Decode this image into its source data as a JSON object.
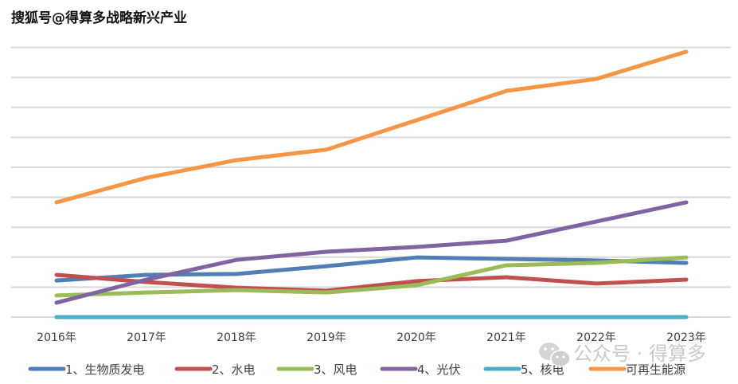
{
  "watermark_top": "搜狐号@得算多战略新兴产业",
  "watermark_bottom": {
    "icon": "wechat-icon",
    "text": "公众号 · 得算多"
  },
  "chart_data": {
    "type": "line",
    "title": "",
    "xlabel": "",
    "ylabel": "",
    "y_axis_labels_visible": false,
    "y_units": "gridline units (no axis labels shown)",
    "ylim": [
      0,
      9
    ],
    "grid": true,
    "legend_position": "bottom",
    "categories": [
      "2016年",
      "2017年",
      "2018年",
      "2019年",
      "2020年",
      "2021年",
      "2022年",
      "2023年"
    ],
    "series": [
      {
        "name": "1、生物质发电",
        "color": "#4f7fb5",
        "values": [
          1.22,
          1.41,
          1.44,
          1.7,
          1.99,
          1.94,
          1.89,
          1.81
        ]
      },
      {
        "name": "2、水电",
        "color": "#c0504d",
        "values": [
          1.41,
          1.17,
          0.98,
          0.88,
          1.2,
          1.33,
          1.12,
          1.25
        ]
      },
      {
        "name": "3、风电",
        "color": "#9bbb59",
        "values": [
          0.72,
          0.82,
          0.9,
          0.82,
          1.06,
          1.73,
          1.81,
          1.99
        ]
      },
      {
        "name": "4、光伏",
        "color": "#8064a2",
        "values": [
          0.48,
          1.25,
          1.91,
          2.18,
          2.34,
          2.55,
          3.19,
          3.83
        ]
      },
      {
        "name": "5、核电",
        "color": "#4bacc6",
        "values": [
          0,
          0,
          0,
          0,
          0,
          0,
          0,
          0
        ]
      },
      {
        "name": "可再生能源",
        "color": "#f79646",
        "values": [
          3.83,
          4.65,
          5.24,
          5.59,
          6.57,
          7.55,
          7.95,
          8.86
        ]
      }
    ]
  }
}
